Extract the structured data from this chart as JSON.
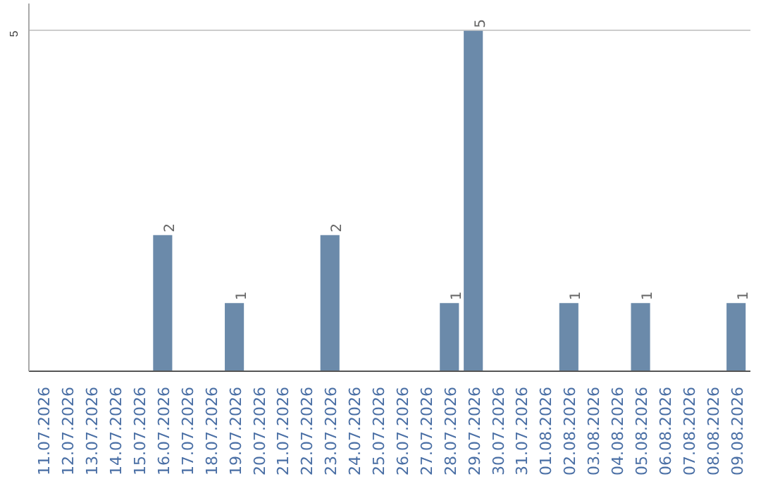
{
  "chart_data": {
    "type": "bar",
    "categories": [
      "11.07.2026",
      "12.07.2026",
      "13.07.2026",
      "14.07.2026",
      "15.07.2026",
      "16.07.2026",
      "17.07.2026",
      "18.07.2026",
      "19.07.2026",
      "20.07.2026",
      "21.07.2026",
      "22.07.2026",
      "23.07.2026",
      "24.07.2026",
      "25.07.2026",
      "26.07.2026",
      "27.07.2026",
      "28.07.2026",
      "29.07.2026",
      "30.07.2026",
      "31.07.2026",
      "01.08.2026",
      "02.08.2026",
      "03.08.2026",
      "04.08.2026",
      "05.08.2026",
      "06.08.2026",
      "07.08.2026",
      "08.08.2026",
      "09.08.2026"
    ],
    "values": [
      0,
      0,
      0,
      0,
      0,
      2,
      0,
      0,
      1,
      0,
      0,
      0,
      2,
      0,
      0,
      0,
      0,
      1,
      5,
      0,
      0,
      0,
      1,
      0,
      0,
      1,
      0,
      0,
      0,
      1
    ],
    "value_labels": [
      null,
      null,
      null,
      null,
      null,
      "2",
      null,
      null,
      "1",
      null,
      null,
      null,
      "2",
      null,
      null,
      null,
      null,
      "1",
      "5",
      null,
      null,
      null,
      "1",
      null,
      null,
      "1",
      null,
      null,
      null,
      "1"
    ],
    "color": "#6b8aaa",
    "ylim": [
      0,
      5.4
    ],
    "yticks": [
      5
    ],
    "grid": "y"
  }
}
